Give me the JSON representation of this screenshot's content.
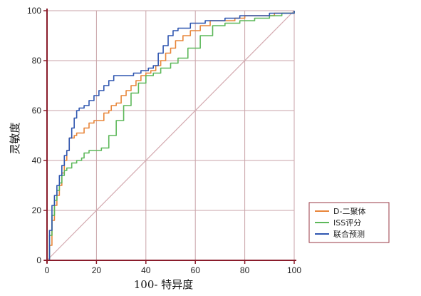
{
  "chart_data": {
    "type": "line",
    "xlabel": "100- 特异度",
    "ylabel": "灵敏度",
    "xlim": [
      0,
      100
    ],
    "ylim": [
      0,
      100
    ],
    "x_ticks": [
      "0",
      "20",
      "40",
      "60",
      "80",
      "100"
    ],
    "y_ticks": [
      "0",
      "20",
      "40",
      "60",
      "80",
      "100"
    ],
    "grid": true,
    "legend_position": "bottom-right, outside plot",
    "diagonal_reference": true,
    "colors": {
      "grid": "#c9a3a8",
      "diagonal": "#d4aab0",
      "axis": "#8a1c2b"
    },
    "series": [
      {
        "name": "D-二聚体",
        "color": "#e8863a",
        "points": [
          [
            0,
            0
          ],
          [
            1,
            6
          ],
          [
            2,
            16
          ],
          [
            3,
            22
          ],
          [
            4,
            26
          ],
          [
            5,
            30
          ],
          [
            6,
            35
          ],
          [
            7,
            40
          ],
          [
            8,
            44
          ],
          [
            9,
            49
          ],
          [
            11,
            50
          ],
          [
            12,
            51
          ],
          [
            14,
            51
          ],
          [
            15,
            53
          ],
          [
            17,
            55
          ],
          [
            19,
            56
          ],
          [
            22,
            56
          ],
          [
            23,
            59
          ],
          [
            25,
            60
          ],
          [
            26,
            62
          ],
          [
            28,
            63
          ],
          [
            30,
            66
          ],
          [
            32,
            68
          ],
          [
            34,
            70
          ],
          [
            36,
            72
          ],
          [
            38,
            74
          ],
          [
            40,
            75
          ],
          [
            42,
            76
          ],
          [
            44,
            78
          ],
          [
            46,
            80
          ],
          [
            48,
            83
          ],
          [
            50,
            85
          ],
          [
            52,
            88
          ],
          [
            55,
            90
          ],
          [
            58,
            92
          ],
          [
            62,
            94
          ],
          [
            66,
            96
          ],
          [
            70,
            96
          ],
          [
            76,
            97
          ],
          [
            80,
            98
          ],
          [
            86,
            98
          ],
          [
            92,
            99
          ],
          [
            100,
            100
          ]
        ]
      },
      {
        "name": "ISS评分",
        "color": "#5db85a",
        "points": [
          [
            0,
            0
          ],
          [
            1,
            10
          ],
          [
            2,
            18
          ],
          [
            3,
            24
          ],
          [
            4,
            28
          ],
          [
            5,
            31
          ],
          [
            6,
            34
          ],
          [
            7,
            36
          ],
          [
            8,
            37
          ],
          [
            10,
            39
          ],
          [
            12,
            40
          ],
          [
            14,
            41
          ],
          [
            15,
            43
          ],
          [
            17,
            44
          ],
          [
            19,
            44
          ],
          [
            22,
            45
          ],
          [
            25,
            50
          ],
          [
            28,
            56
          ],
          [
            31,
            62
          ],
          [
            34,
            67
          ],
          [
            37,
            71
          ],
          [
            40,
            74
          ],
          [
            43,
            75
          ],
          [
            46,
            77
          ],
          [
            50,
            79
          ],
          [
            53,
            81
          ],
          [
            57,
            85
          ],
          [
            62,
            90
          ],
          [
            67,
            94
          ],
          [
            72,
            95
          ],
          [
            78,
            96
          ],
          [
            84,
            97
          ],
          [
            90,
            98
          ],
          [
            95,
            99
          ],
          [
            100,
            100
          ]
        ]
      },
      {
        "name": "联合预测",
        "color": "#2f56b0",
        "points": [
          [
            0,
            0
          ],
          [
            1,
            12
          ],
          [
            2,
            22
          ],
          [
            3,
            26
          ],
          [
            4,
            30
          ],
          [
            5,
            34
          ],
          [
            6,
            38
          ],
          [
            7,
            42
          ],
          [
            8,
            44
          ],
          [
            9,
            49
          ],
          [
            10,
            53
          ],
          [
            11,
            57
          ],
          [
            12,
            60
          ],
          [
            13,
            61
          ],
          [
            14,
            61
          ],
          [
            15,
            62
          ],
          [
            17,
            64
          ],
          [
            19,
            66
          ],
          [
            21,
            68
          ],
          [
            23,
            70
          ],
          [
            25,
            72
          ],
          [
            27,
            74
          ],
          [
            29,
            74
          ],
          [
            32,
            74
          ],
          [
            35,
            75
          ],
          [
            38,
            76
          ],
          [
            41,
            77
          ],
          [
            43,
            78
          ],
          [
            45,
            83
          ],
          [
            47,
            86
          ],
          [
            49,
            90
          ],
          [
            51,
            92
          ],
          [
            53,
            93
          ],
          [
            55,
            93
          ],
          [
            58,
            95
          ],
          [
            61,
            95
          ],
          [
            64,
            96
          ],
          [
            68,
            96
          ],
          [
            72,
            97
          ],
          [
            78,
            98
          ],
          [
            84,
            98
          ],
          [
            90,
            99
          ],
          [
            96,
            99
          ],
          [
            100,
            100
          ]
        ]
      }
    ]
  }
}
